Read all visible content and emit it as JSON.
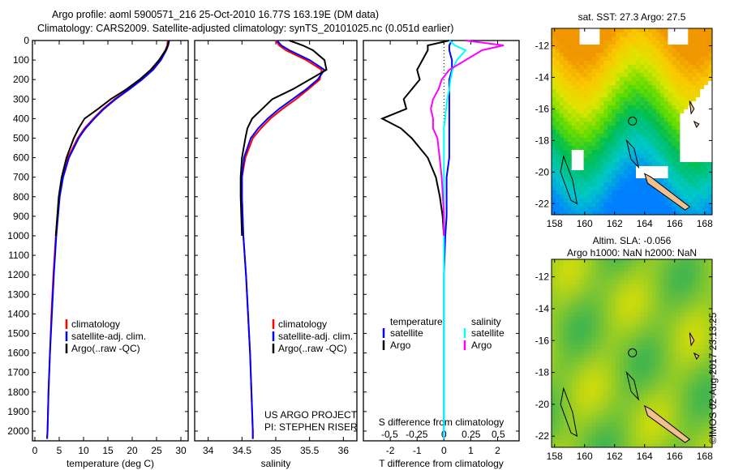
{
  "title": {
    "line1": "Argo profile: aoml 5900571_216 25-Oct-2010 16.77S 163.19E (DM data)",
    "line2": "Climatology: CARS2009. Satellite-adjusted climatology: synTS_20101025.nc (0.051d earlier)"
  },
  "credit": "©IMOS 02-Aug-2017 23:13:25",
  "colors": {
    "climatology": "#ff0000",
    "satellite": "#0000ff",
    "argo": "#000000",
    "sal_satellite": "#00ffff",
    "sal_argo": "#ff00ff"
  },
  "chart_data": [
    {
      "type": "line",
      "id": "temperature",
      "xlabel": "temperature (deg C)",
      "xlim": [
        -0.5,
        31.5
      ],
      "xticks": [
        0,
        5,
        10,
        15,
        20,
        25,
        30
      ],
      "ylim": [
        0,
        2050
      ],
      "yticks": [
        0,
        100,
        200,
        300,
        400,
        500,
        600,
        700,
        800,
        900,
        1000,
        1100,
        1200,
        1300,
        1400,
        1500,
        1600,
        1700,
        1800,
        1900,
        2000
      ],
      "legend": [
        "climatology",
        "satellite-adj. clim.",
        "Argo(..raw -QC)"
      ],
      "depth": [
        0,
        25,
        50,
        100,
        150,
        200,
        250,
        300,
        350,
        400,
        450,
        500,
        600,
        700,
        800,
        1000,
        1200,
        1400,
        1600,
        1800,
        2000,
        2040
      ],
      "series": [
        {
          "name": "climatology",
          "values": [
            27.3,
            27.2,
            26.8,
            25.6,
            24.0,
            21.8,
            19.2,
            16.4,
            14.0,
            12.0,
            10.2,
            8.8,
            6.8,
            5.7,
            5.0,
            4.3,
            3.8,
            3.4,
            3.1,
            2.8,
            2.6,
            2.5
          ]
        },
        {
          "name": "satellite-adj. clim.",
          "values": [
            27.6,
            27.4,
            27.0,
            25.9,
            24.3,
            22.0,
            19.4,
            16.6,
            14.2,
            12.2,
            10.4,
            9.0,
            7.0,
            5.8,
            5.1,
            4.4,
            3.9,
            3.5,
            3.1,
            2.8,
            2.6,
            2.5
          ]
        },
        {
          "name": "Argo(..raw -QC)",
          "values": [
            27.5,
            27.3,
            26.9,
            25.5,
            23.8,
            21.5,
            18.8,
            15.6,
            13.0,
            10.2,
            9.0,
            8.0,
            6.5,
            5.5,
            4.9,
            4.3,
            null,
            null,
            null,
            null,
            null,
            null
          ]
        }
      ]
    },
    {
      "type": "line",
      "id": "salinity",
      "xlabel": "salinity",
      "xlim": [
        33.8,
        36.2
      ],
      "xticks": [
        34,
        34.5,
        35,
        35.5,
        36
      ],
      "ylim": [
        0,
        2050
      ],
      "legend": [
        "climatology",
        "satellite-adj. clim.",
        "Argo(..raw -QC)"
      ],
      "annotation": [
        "US ARGO PROJECT",
        "PI: STEPHEN RISER"
      ],
      "depth": [
        0,
        25,
        50,
        100,
        150,
        200,
        250,
        300,
        350,
        400,
        450,
        500,
        600,
        700,
        800,
        1000,
        1200,
        1400,
        1600,
        1800,
        2000,
        2040
      ],
      "series": [
        {
          "name": "climatology",
          "values": [
            35.0,
            35.05,
            35.15,
            35.45,
            35.68,
            35.65,
            35.48,
            35.3,
            35.1,
            34.92,
            34.78,
            34.66,
            34.55,
            34.5,
            34.5,
            34.52,
            34.56,
            34.59,
            34.62,
            34.64,
            34.66,
            34.66
          ]
        },
        {
          "name": "satellite-adj. clim.",
          "values": [
            35.02,
            35.08,
            35.2,
            35.5,
            35.72,
            35.62,
            35.45,
            35.25,
            35.05,
            34.88,
            34.74,
            34.63,
            34.53,
            34.5,
            34.5,
            34.52,
            34.56,
            34.59,
            34.62,
            34.64,
            34.66,
            34.66
          ]
        },
        {
          "name": "Argo(..raw -QC)",
          "values": [
            35.2,
            35.4,
            35.55,
            35.72,
            35.75,
            35.5,
            35.25,
            34.95,
            34.8,
            34.65,
            34.58,
            34.55,
            34.5,
            34.48,
            34.48,
            34.5,
            null,
            null,
            null,
            null,
            null,
            null
          ]
        }
      ]
    },
    {
      "type": "line",
      "id": "difference",
      "xlabel": "T difference from climatology",
      "xlim": [
        -3,
        2.8
      ],
      "xticks": [
        -2,
        -1,
        0,
        1,
        2
      ],
      "x2label": "S difference from climatology",
      "x2ticks": [
        -0.5,
        -0.25,
        0,
        0.25,
        0.5
      ],
      "x2ticklabels": [
        "-0.5",
        "-0.25",
        "0",
        "0.25",
        "0.5"
      ],
      "ylim": [
        0,
        2050
      ],
      "legend_t": {
        "title": "temperature",
        "items": [
          "satellite",
          "Argo"
        ]
      },
      "legend_s": {
        "title": "salinity",
        "items": [
          "satellite",
          "Argo"
        ]
      },
      "depth": [
        0,
        25,
        50,
        100,
        150,
        200,
        250,
        300,
        350,
        400,
        450,
        500,
        600,
        700,
        800,
        900,
        1000,
        1200,
        1500,
        2000,
        2040
      ],
      "series": [
        {
          "name": "T satellite",
          "axis": "T",
          "values": [
            0.3,
            0.2,
            0.2,
            0.3,
            0.3,
            0.2,
            0.2,
            0.2,
            0.2,
            0.2,
            0.2,
            0.2,
            0.2,
            0.1,
            0.1,
            0.1,
            0.05,
            0,
            0,
            0,
            0
          ]
        },
        {
          "name": "T Argo",
          "axis": "T",
          "values": [
            0.2,
            -0.6,
            -0.6,
            -0.8,
            -1.0,
            -0.9,
            -1.2,
            -1.5,
            -1.4,
            -2.3,
            -1.6,
            -1.2,
            -0.6,
            -0.3,
            -0.15,
            -0.05,
            0,
            null,
            null,
            null,
            null
          ]
        },
        {
          "name": "S satellite",
          "axis": "S",
          "values": [
            0.05,
            0.1,
            0.2,
            0.12,
            0.08,
            0.06,
            0.05,
            0.03,
            0.02,
            0.01,
            0.0,
            0.0,
            0.0,
            0.0,
            0.0,
            0.0,
            0.0,
            0.0,
            0.0,
            0.0,
            0.0
          ]
        },
        {
          "name": "S Argo",
          "axis": "S",
          "values": [
            0.2,
            0.55,
            0.35,
            0.2,
            0.05,
            -0.02,
            -0.05,
            -0.1,
            -0.12,
            -0.1,
            -0.1,
            -0.06,
            -0.04,
            -0.02,
            -0.01,
            0.0,
            0.0,
            null,
            null,
            null,
            null
          ]
        }
      ]
    }
  ],
  "maps": [
    {
      "id": "sst",
      "title": [
        "sat. SST: 27.3 Argo: 27.5"
      ],
      "xticks": [
        158,
        160,
        162,
        164,
        166,
        168
      ],
      "yticks": [
        -12,
        -14,
        -16,
        -18,
        -20,
        -22
      ],
      "float_lon": 163.19,
      "float_lat": -16.77
    },
    {
      "id": "sla",
      "title": [
        "Altim. SLA: -0.056",
        "Argo h1000: NaN h2000: NaN"
      ],
      "xticks": [
        158,
        160,
        162,
        164,
        166,
        168
      ],
      "yticks": [
        -12,
        -14,
        -16,
        -18,
        -20,
        -22
      ],
      "float_lon": 163.19,
      "float_lat": -16.77
    }
  ]
}
